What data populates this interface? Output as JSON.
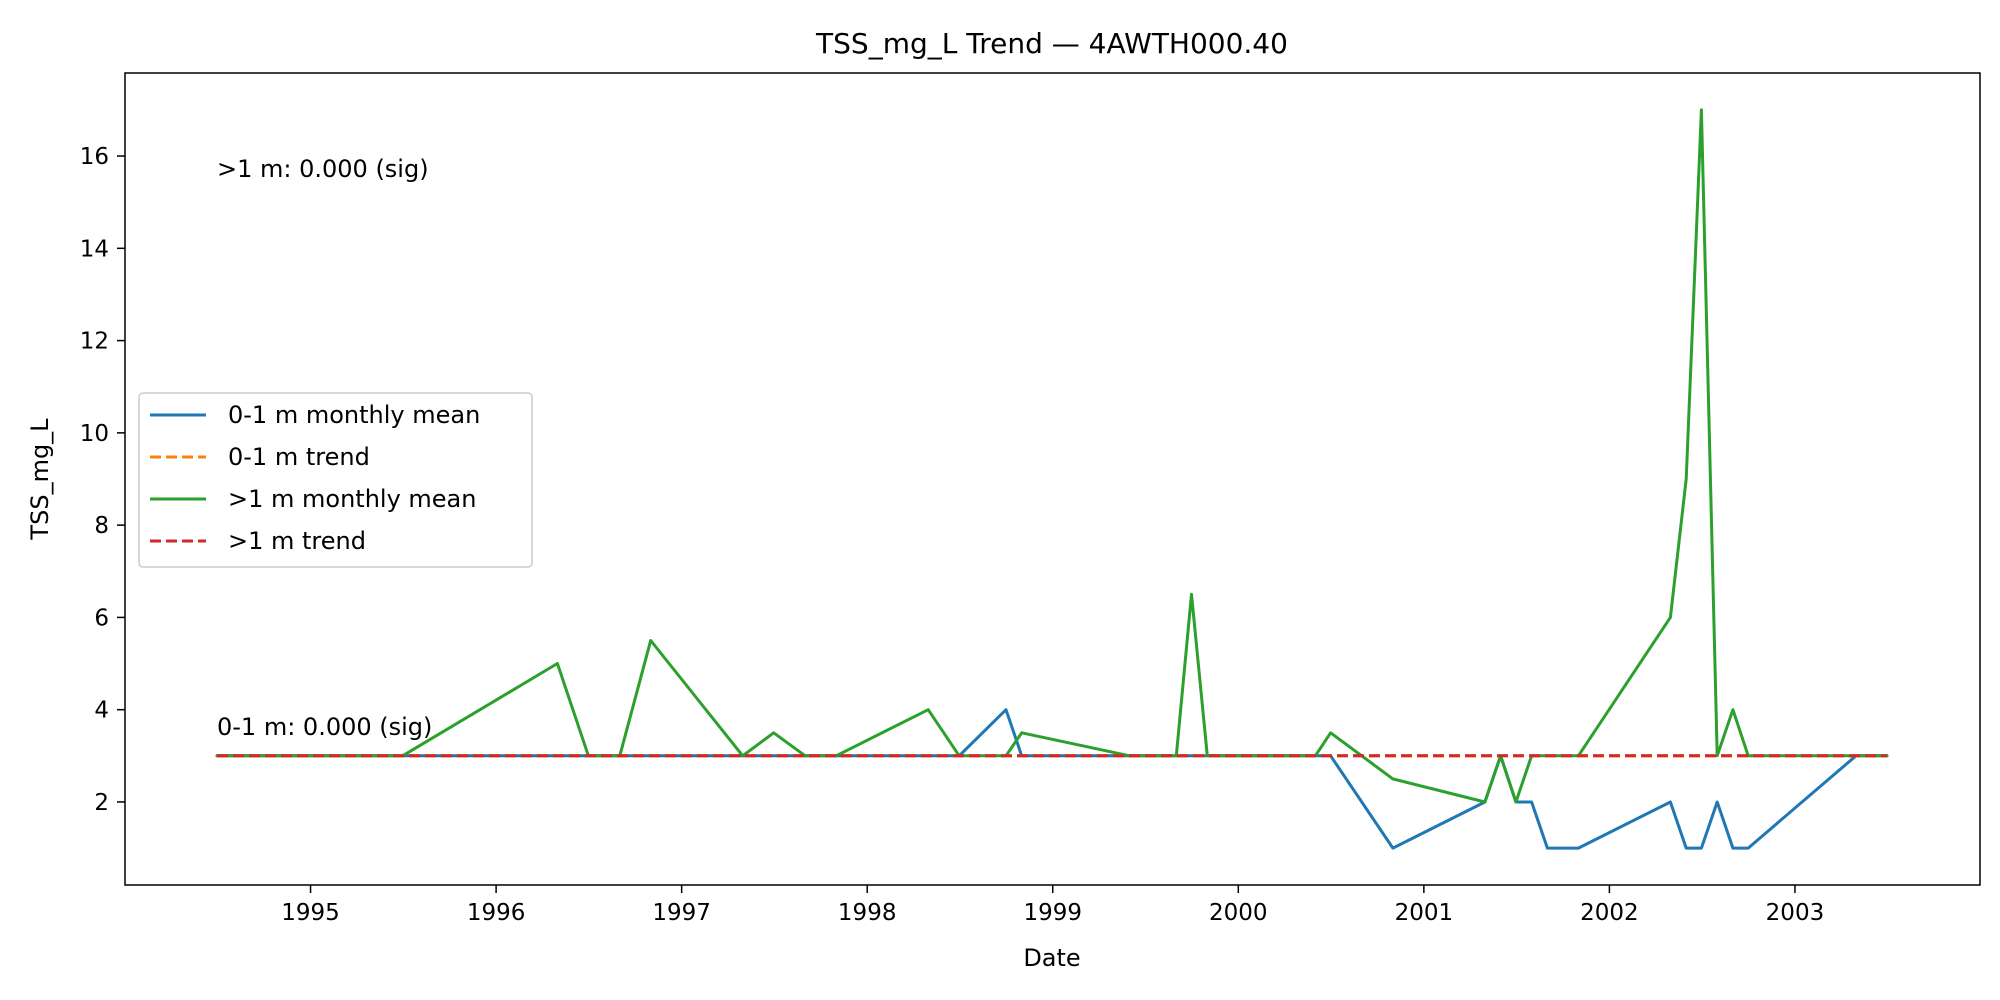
{
  "chart_data": {
    "type": "line",
    "title": "TSS_mg_L Trend — 4AWTH000.40",
    "xlabel": "Date",
    "ylabel": "TSS_mg_L",
    "xlim": [
      "1994-01-01",
      "2003-12-31"
    ],
    "ylim": [
      0.2,
      17.8
    ],
    "x_ticks": [
      "1995",
      "1996",
      "1997",
      "1998",
      "1999",
      "2000",
      "2001",
      "2002",
      "2003"
    ],
    "y_ticks": [
      2,
      4,
      6,
      8,
      10,
      12,
      14,
      16
    ],
    "grid": false,
    "legend_position": "center-left",
    "series": [
      {
        "name": "0-1 m monthly mean",
        "color": "#1f77b4",
        "style": "solid",
        "points": [
          [
            "1994-07-01",
            3
          ],
          [
            "1998-07-01",
            3
          ],
          [
            "1998-10-01",
            4
          ],
          [
            "1998-11-01",
            3
          ],
          [
            "2000-07-01",
            3
          ],
          [
            "2000-11-01",
            1
          ],
          [
            "2001-05-01",
            2
          ],
          [
            "2001-06-01",
            3
          ],
          [
            "2001-07-01",
            2
          ],
          [
            "2001-08-01",
            2
          ],
          [
            "2001-09-01",
            1
          ],
          [
            "2001-11-01",
            1
          ],
          [
            "2002-05-01",
            2
          ],
          [
            "2002-06-01",
            1
          ],
          [
            "2002-07-01",
            1
          ],
          [
            "2002-08-01",
            2
          ],
          [
            "2002-09-01",
            1
          ],
          [
            "2002-10-01",
            1
          ],
          [
            "2003-05-01",
            3
          ],
          [
            "2003-07-01",
            3
          ]
        ]
      },
      {
        "name": "0-1 m trend",
        "color": "#ff7f0e",
        "style": "dashed",
        "points": [
          [
            "1994-07-01",
            3
          ],
          [
            "2003-07-01",
            3
          ]
        ]
      },
      {
        "name": ">1 m monthly mean",
        "color": "#2ca02c",
        "style": "solid",
        "points": [
          [
            "1994-07-01",
            3
          ],
          [
            "1995-07-01",
            3
          ],
          [
            "1996-05-01",
            5
          ],
          [
            "1996-07-01",
            3
          ],
          [
            "1996-09-01",
            3
          ],
          [
            "1996-11-01",
            5.5
          ],
          [
            "1997-05-01",
            3
          ],
          [
            "1997-07-01",
            3.5
          ],
          [
            "1997-09-01",
            3
          ],
          [
            "1997-11-01",
            3
          ],
          [
            "1998-05-01",
            4
          ],
          [
            "1998-07-01",
            3
          ],
          [
            "1998-10-01",
            3
          ],
          [
            "1998-11-01",
            3.5
          ],
          [
            "1999-06-01",
            3
          ],
          [
            "1999-09-01",
            3
          ],
          [
            "1999-10-01",
            6.5
          ],
          [
            "1999-11-01",
            3
          ],
          [
            "2000-06-01",
            3
          ],
          [
            "2000-07-01",
            3.5
          ],
          [
            "2000-11-01",
            2.5
          ],
          [
            "2001-05-01",
            2
          ],
          [
            "2001-06-01",
            3
          ],
          [
            "2001-07-01",
            2
          ],
          [
            "2001-08-01",
            3
          ],
          [
            "2001-11-01",
            3
          ],
          [
            "2002-05-01",
            6
          ],
          [
            "2002-06-01",
            9
          ],
          [
            "2002-07-01",
            17
          ],
          [
            "2002-08-01",
            3
          ],
          [
            "2002-09-01",
            4
          ],
          [
            "2002-10-01",
            3
          ],
          [
            "2003-07-01",
            3
          ]
        ]
      },
      {
        "name": ">1 m trend",
        "color": "#d62728",
        "style": "dashed",
        "points": [
          [
            "1994-07-01",
            3
          ],
          [
            "2003-07-01",
            3
          ]
        ]
      }
    ],
    "annotations": [
      {
        "text": ">1 m: 0.000 (sig)",
        "x": "1994-07-01",
        "y": 15.55
      },
      {
        "text": "0-1 m: 0.000 (sig)",
        "x": "1994-07-01",
        "y": 3.45
      }
    ]
  }
}
